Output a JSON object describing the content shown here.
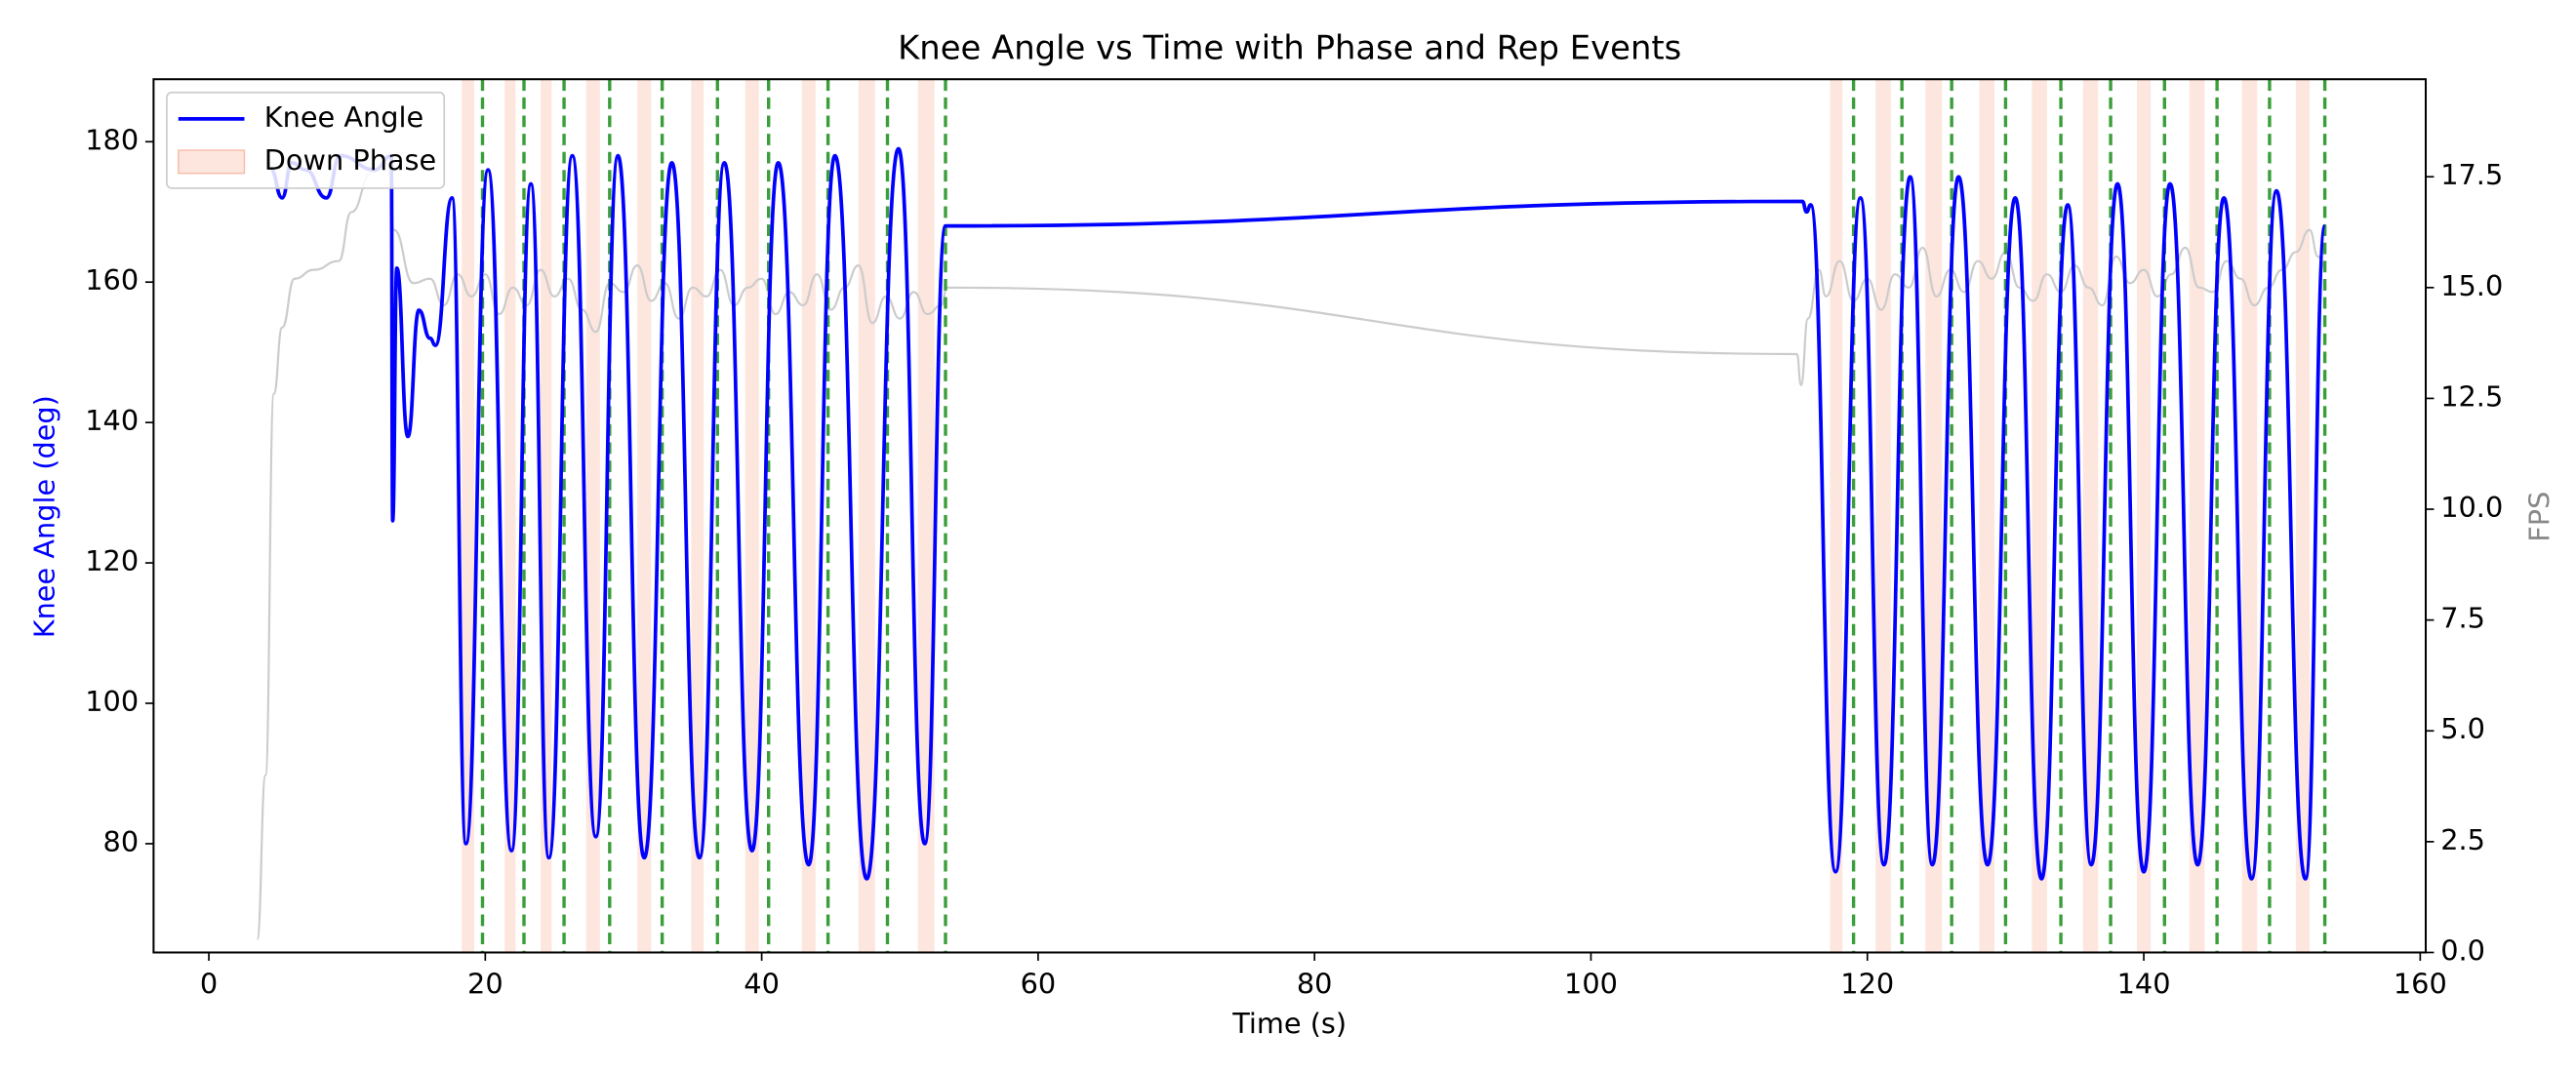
{
  "chart_data": {
    "type": "line",
    "title": "Knee Angle vs Time with Phase and Rep Events",
    "x_label": "Time (s)",
    "y_label": "Knee Angle (deg)",
    "y2_label": "FPS",
    "xlim": [
      -4,
      160.4
    ],
    "xticks": [
      0,
      20,
      40,
      60,
      80,
      100,
      120,
      140,
      160
    ],
    "ylim": [
      64.5,
      188.9
    ],
    "yticks": [
      80,
      100,
      120,
      140,
      160,
      180
    ],
    "y2lim": [
      0,
      19.7
    ],
    "y2ticks": [
      {
        "value": 0,
        "label": "0.0"
      },
      2.5,
      {
        "value": 5,
        "label": "5.0"
      },
      7.5,
      {
        "value": 10,
        "label": "10.0"
      },
      12.5,
      {
        "value": 15,
        "label": "15.0"
      },
      17.5
    ],
    "legend": "upper left",
    "series": [
      {
        "name": "Knee Angle",
        "color": "#0000ff",
        "x": [
          4.5,
          5.3,
          6,
          7,
          8.5,
          9.5,
          12,
          13.2,
          13.3,
          13.6,
          14.4,
          15.2,
          16,
          16.4,
          17.6,
          18.6,
          20.2,
          21.9,
          23.3,
          24.6,
          26.3,
          28.0,
          29.6,
          31.5,
          33.5,
          35.5,
          37.3,
          39.3,
          41.2,
          43.4,
          45.3,
          47.6,
          49.9,
          51.8,
          53.3,
          115.3,
          115.6,
          115.9,
          117.7,
          119.5,
          121.2,
          123.1,
          124.7,
          126.6,
          128.7,
          130.7,
          132.6,
          134.5,
          136.2,
          138.1,
          140.0,
          141.9,
          143.9,
          145.8,
          147.8,
          149.6,
          151.7,
          153.1
        ],
        "values": [
          176,
          172,
          177,
          176,
          172,
          178,
          176,
          178,
          126,
          162,
          138,
          156,
          152,
          151,
          172,
          80,
          176,
          79,
          174,
          78,
          178,
          81,
          178,
          78,
          177,
          78,
          177,
          79,
          177,
          77,
          178,
          75,
          179,
          80,
          168,
          171.5,
          170,
          171,
          76,
          172,
          77,
          175,
          77,
          175,
          77,
          172,
          75,
          171,
          77,
          174,
          76,
          174,
          77,
          172,
          75,
          173,
          75,
          168
        ]
      },
      {
        "color": "#cccccc",
        "axis": "y2",
        "x": [
          3.5,
          4.1,
          4.7,
          5.3,
          6.2,
          7.6,
          9.4,
          10.3,
          11.8,
          13,
          13.4,
          14.8,
          16,
          17,
          18,
          19,
          20,
          21,
          22,
          23,
          24,
          25,
          26,
          27,
          28,
          29,
          30,
          31,
          32,
          33,
          34,
          35,
          36,
          37,
          38,
          39,
          40,
          41,
          42,
          43,
          44,
          45,
          46,
          47,
          48,
          49,
          50,
          51,
          52,
          53,
          53.4,
          114.9,
          115.2,
          115.7,
          116.5,
          117,
          118,
          119,
          120,
          121,
          122,
          123,
          124,
          125,
          126,
          127,
          128,
          129,
          130,
          131,
          132,
          133,
          134,
          135,
          136,
          137,
          138,
          139,
          140,
          141,
          142,
          143,
          144,
          145,
          146,
          147,
          148,
          149,
          150,
          151,
          152,
          152.6,
          153.2
        ],
        "values": [
          0.3,
          4.0,
          12.6,
          14.1,
          15.2,
          15.4,
          15.6,
          16.7,
          17.6,
          17.8,
          16.3,
          15.1,
          15.2,
          14.6,
          15.3,
          14.8,
          15.3,
          14.4,
          15.0,
          14.6,
          15.4,
          14.8,
          15.2,
          14.5,
          14.0,
          15.1,
          14.9,
          15.5,
          14.7,
          15.1,
          14.3,
          15.0,
          14.8,
          15.4,
          14.6,
          15.0,
          15.2,
          14.4,
          14.9,
          14.6,
          15.3,
          14.5,
          15.0,
          15.5,
          14.2,
          14.8,
          14.3,
          14.9,
          14.4,
          14.6,
          15.0,
          13.5,
          12.8,
          14.3,
          15.4,
          14.8,
          15.6,
          14.7,
          15.2,
          14.5,
          15.3,
          15.0,
          15.9,
          14.8,
          15.4,
          14.9,
          15.6,
          15.2,
          15.8,
          15.0,
          14.7,
          15.3,
          14.9,
          15.5,
          15.0,
          14.6,
          15.7,
          15.1,
          15.4,
          14.8,
          15.3,
          15.9,
          15.0,
          14.9,
          15.6,
          15.2,
          14.6,
          15.0,
          15.4,
          15.8,
          16.3,
          15.7,
          15.4
        ]
      }
    ],
    "down_phase": {
      "name": "Down Phase",
      "color": "#fcd5c8",
      "spans": [
        [
          18.3,
          19.2
        ],
        [
          21.4,
          22.2
        ],
        [
          24.0,
          24.8
        ],
        [
          27.3,
          28.3
        ],
        [
          31.0,
          32.0
        ],
        [
          34.9,
          35.8
        ],
        [
          38.8,
          39.8
        ],
        [
          42.9,
          43.9
        ],
        [
          47.0,
          48.2
        ],
        [
          51.3,
          52.5
        ],
        [
          117.3,
          118.2
        ],
        [
          120.6,
          121.7
        ],
        [
          124.2,
          125.4
        ],
        [
          128.1,
          129.2
        ],
        [
          131.9,
          133.0
        ],
        [
          135.6,
          136.7
        ],
        [
          139.5,
          140.5
        ],
        [
          143.3,
          144.4
        ],
        [
          147.1,
          148.2
        ],
        [
          151.0,
          152.0
        ]
      ]
    },
    "rep_events": {
      "color": "#3a9e3a",
      "x": [
        19.8,
        22.8,
        25.7,
        29.0,
        32.8,
        36.8,
        40.5,
        44.8,
        49.1,
        53.3,
        119.0,
        122.5,
        126.1,
        130.0,
        134.0,
        137.6,
        141.5,
        145.3,
        149.1,
        153.1
      ]
    }
  }
}
